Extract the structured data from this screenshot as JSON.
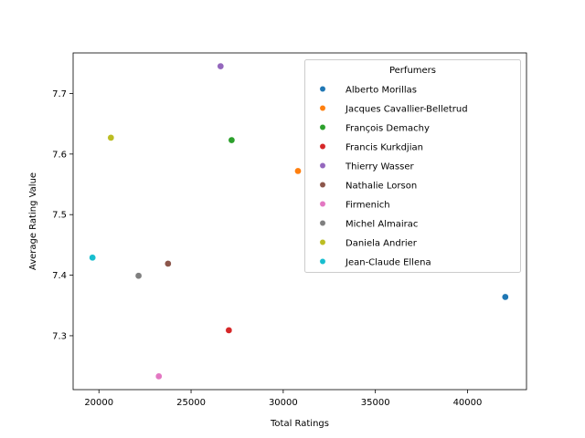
{
  "chart_data": {
    "type": "scatter",
    "title": "",
    "xlabel": "Total Ratings",
    "ylabel": "Average Rating Value",
    "xlim": [
      18600,
      43200
    ],
    "ylim": [
      7.211,
      7.767
    ],
    "xticks": [
      20000,
      25000,
      30000,
      35000,
      40000
    ],
    "xtick_labels": [
      "20000",
      "25000",
      "30000",
      "35000",
      "40000"
    ],
    "yticks": [
      7.3,
      7.4,
      7.5,
      7.6,
      7.7
    ],
    "ytick_labels": [
      "7.3",
      "7.4",
      "7.5",
      "7.6",
      "7.7"
    ],
    "grid": false,
    "legend": {
      "title": "Perfumers",
      "placement": "top-right"
    },
    "series": [
      {
        "name": "Alberto Morillas",
        "color": "#1f77b4",
        "points": [
          {
            "x": 42050,
            "y": 7.364
          }
        ]
      },
      {
        "name": "Jacques Cavallier-Belletrud",
        "color": "#ff7f0e",
        "points": [
          {
            "x": 30800,
            "y": 7.572
          }
        ]
      },
      {
        "name": "François Demachy",
        "color": "#2ca02c",
        "points": [
          {
            "x": 27200,
            "y": 7.623
          }
        ]
      },
      {
        "name": "Francis Kurkdjian",
        "color": "#d62728",
        "points": [
          {
            "x": 27050,
            "y": 7.309
          }
        ]
      },
      {
        "name": "Thierry Wasser",
        "color": "#9467bd",
        "points": [
          {
            "x": 26600,
            "y": 7.745
          }
        ]
      },
      {
        "name": "Nathalie Lorson",
        "color": "#8c564b",
        "points": [
          {
            "x": 23750,
            "y": 7.419
          }
        ]
      },
      {
        "name": " Firmenich",
        "color": "#e377c2",
        "points": [
          {
            "x": 23250,
            "y": 7.233
          }
        ]
      },
      {
        "name": "Michel Almairac",
        "color": "#7f7f7f",
        "points": [
          {
            "x": 22150,
            "y": 7.399
          }
        ]
      },
      {
        "name": "Daniela Andrier",
        "color": "#bcbd22",
        "points": [
          {
            "x": 20650,
            "y": 7.627
          }
        ]
      },
      {
        "name": "Jean-Claude Ellena",
        "color": "#17becf",
        "points": [
          {
            "x": 19650,
            "y": 7.429
          }
        ]
      }
    ]
  }
}
